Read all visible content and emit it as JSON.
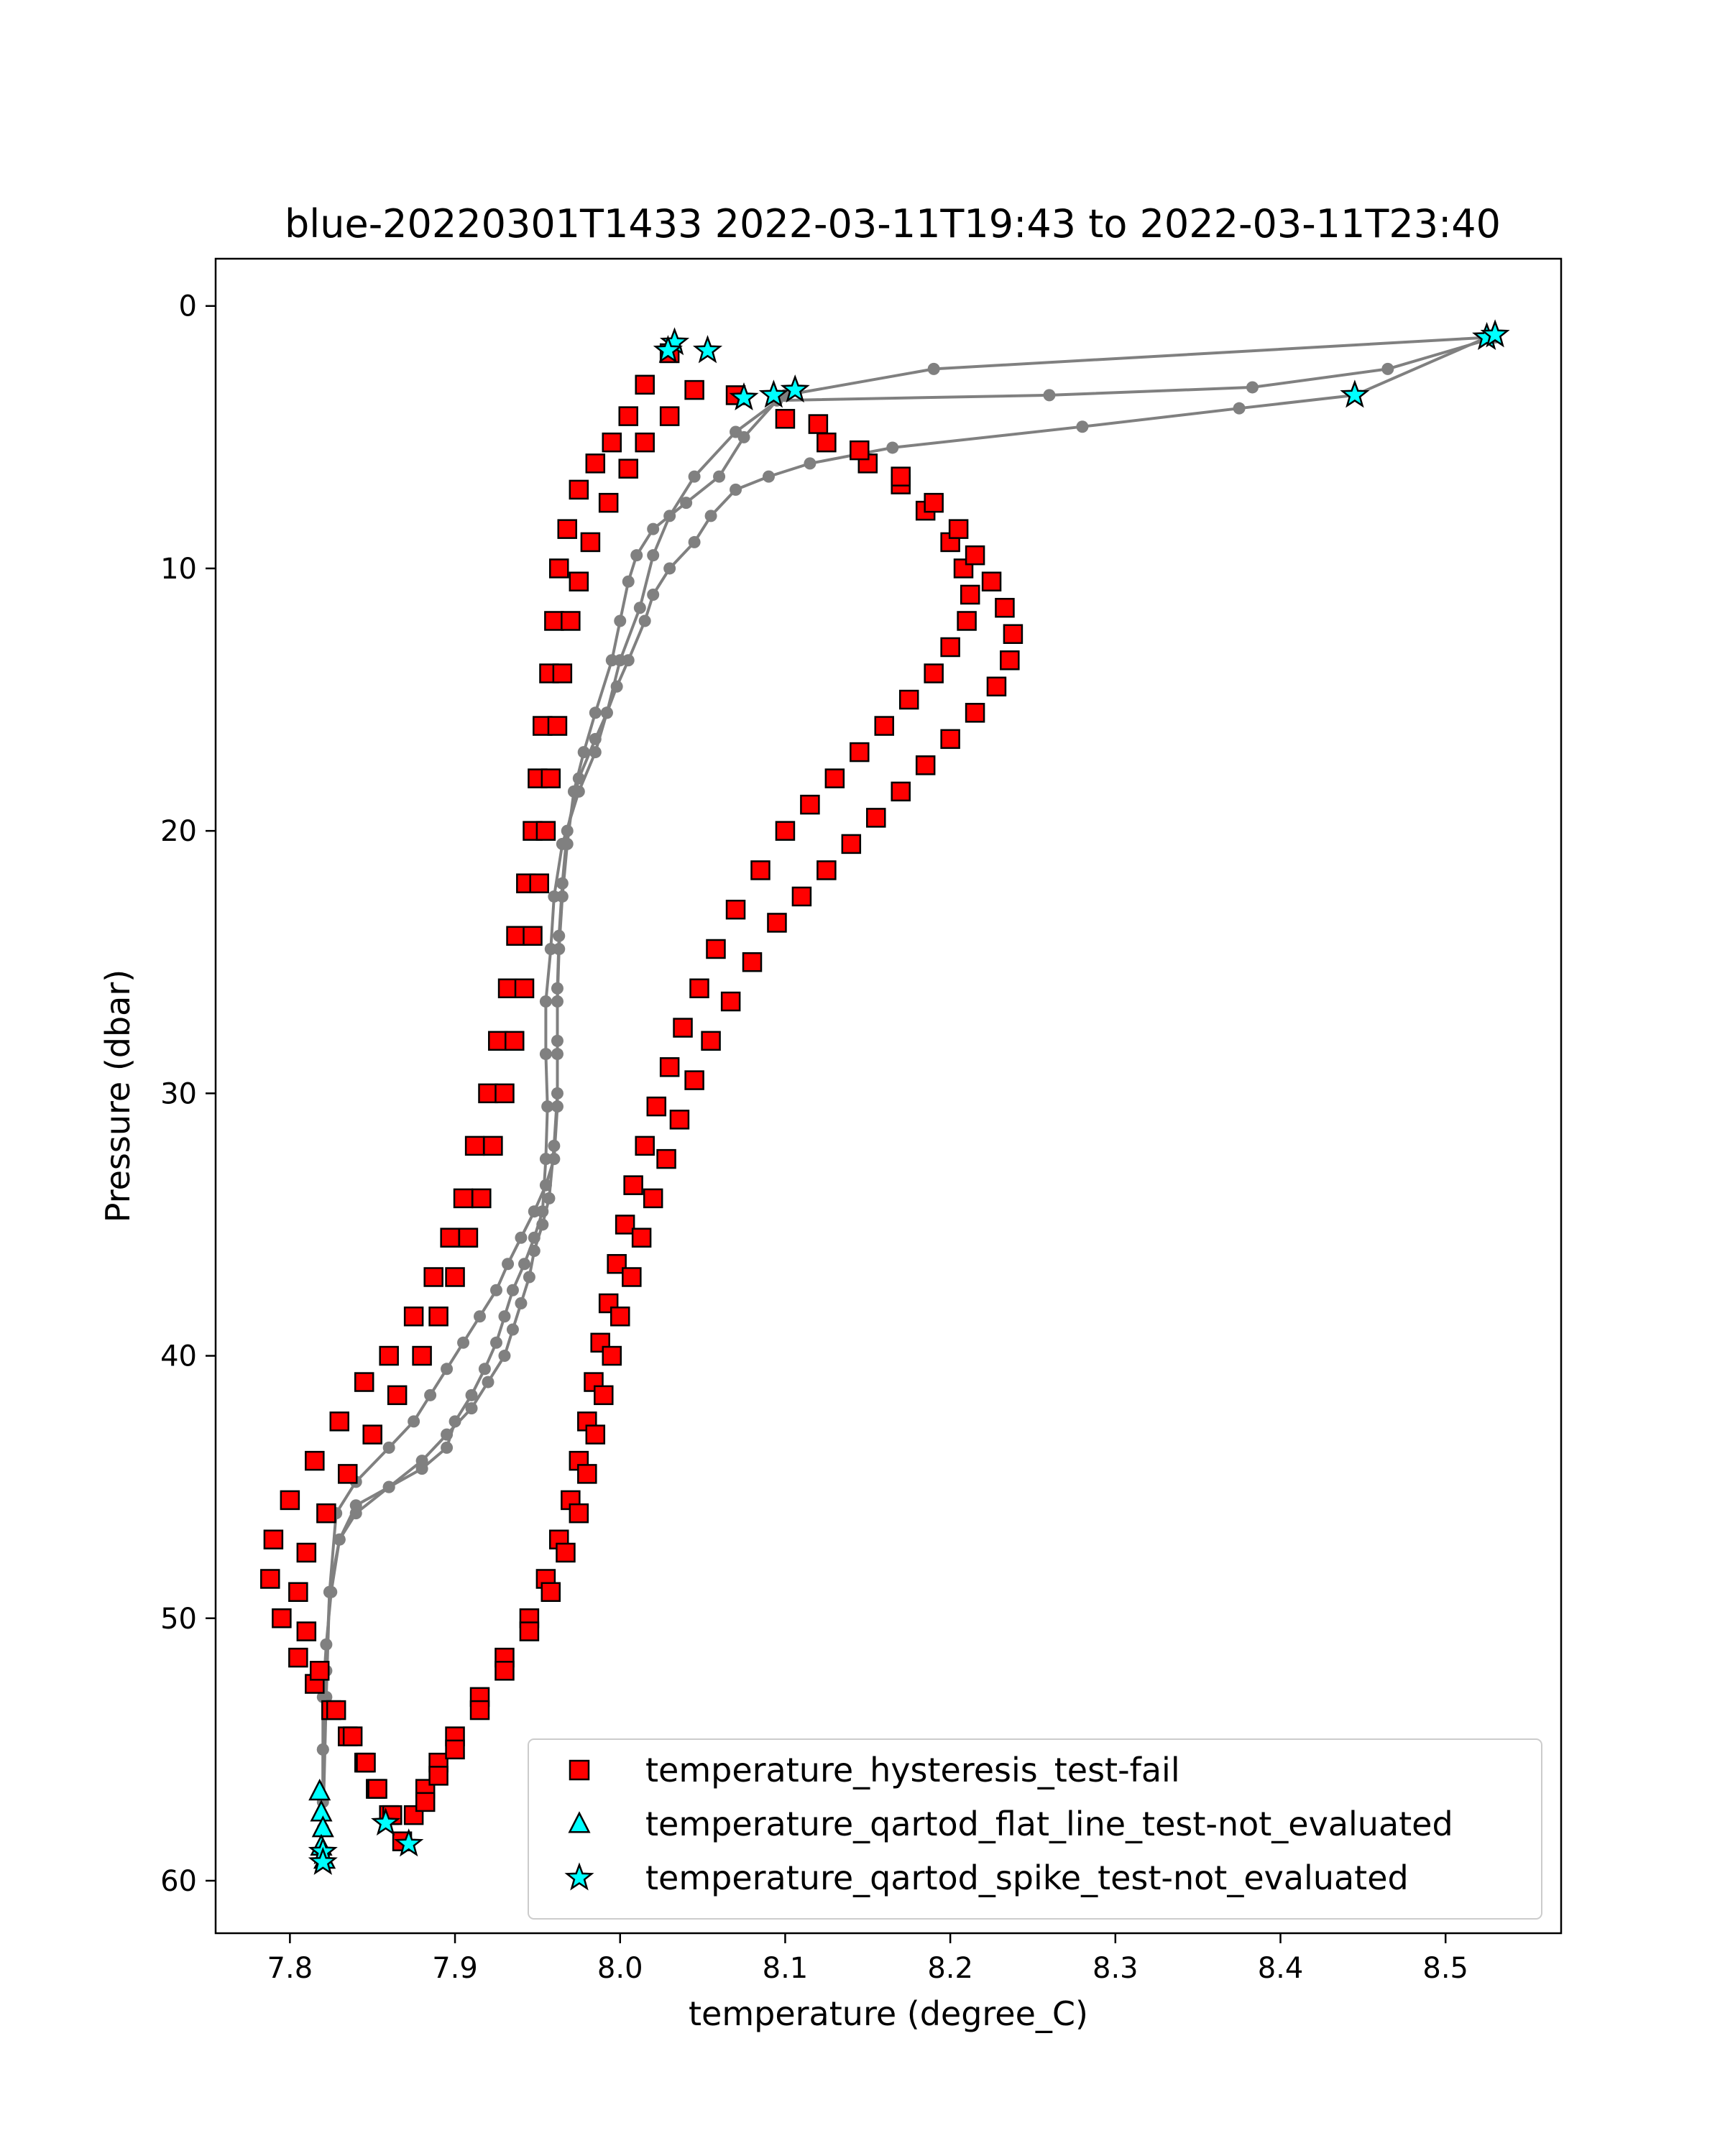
{
  "chart_data": {
    "type": "scatter",
    "title": "blue-20220301T1433 2022-03-11T19:43 to 2022-03-11T23:40",
    "xlabel": "temperature (degree_C)",
    "ylabel": "Pressure (dbar)",
    "xlim": [
      7.755,
      8.57
    ],
    "ylim": [
      62,
      -1.8
    ],
    "y_inverted": true,
    "grid": false,
    "legend_position": "lower right",
    "x_ticks": [
      7.8,
      7.9,
      8.0,
      8.1,
      8.2,
      8.3,
      8.4,
      8.5
    ],
    "x_tick_labels": [
      "7.8",
      "7.9",
      "8.0",
      "8.1",
      "8.2",
      "8.3",
      "8.4",
      "8.5"
    ],
    "y_ticks": [
      0,
      10,
      20,
      30,
      40,
      50,
      60
    ],
    "y_tick_labels": [
      "0",
      "10",
      "20",
      "30",
      "40",
      "50",
      "60"
    ],
    "colors": {
      "profile_line": "#808080",
      "hysteresis_fill": "#ff0000",
      "flagged_fill": "#00ffff",
      "marker_edge": "#000000"
    },
    "profiles": [
      {
        "x": [
          8.525,
          8.19,
          8.1,
          8.07,
          8.045,
          8.03,
          8.02,
          8.012,
          8.0,
          7.992,
          7.985,
          7.975,
          7.965,
          7.96,
          7.958,
          7.955,
          7.955,
          7.956,
          7.955,
          7.953,
          7.948,
          7.942,
          7.935,
          7.93,
          7.925,
          7.918,
          7.91,
          7.9,
          7.895,
          7.88,
          7.86,
          7.84,
          7.83,
          7.825,
          7.822,
          7.82,
          7.82,
          7.82
        ],
        "y": [
          1.2,
          2.4,
          3.4,
          4.8,
          6.5,
          8.0,
          9.5,
          11.5,
          13.5,
          15.5,
          17.0,
          18.5,
          20.5,
          22.5,
          24.5,
          26.5,
          28.5,
          30.5,
          32.5,
          34.5,
          35.5,
          36.5,
          37.5,
          38.5,
          39.5,
          40.5,
          41.5,
          42.5,
          43.5,
          44.3,
          45.0,
          45.7,
          47.0,
          49.0,
          51.0,
          53.0,
          55.0,
          57.0
        ]
      },
      {
        "x": [
          8.53,
          8.465,
          8.383,
          8.26,
          8.095,
          8.075,
          8.06,
          8.04,
          8.02,
          8.01,
          8.005,
          8.0,
          7.995,
          7.985,
          7.978,
          7.972,
          7.968,
          7.965,
          7.963,
          7.962,
          7.962,
          7.962,
          7.96,
          7.955,
          7.948,
          7.94,
          7.932,
          7.925,
          7.915,
          7.905,
          7.895,
          7.885,
          7.875,
          7.86,
          7.84,
          7.828,
          7.824,
          7.822,
          7.82
        ],
        "y": [
          1.2,
          2.4,
          3.1,
          3.4,
          3.6,
          5.0,
          6.5,
          7.5,
          8.5,
          9.5,
          10.5,
          12.0,
          13.5,
          15.5,
          17.0,
          18.5,
          20.5,
          22.5,
          24.5,
          26.5,
          28.5,
          30.5,
          32.5,
          33.5,
          34.5,
          35.5,
          36.5,
          37.5,
          38.5,
          39.5,
          40.5,
          41.5,
          42.5,
          43.5,
          44.8,
          46.0,
          49.0,
          53.0,
          58.0
        ]
      },
      {
        "x": [
          8.525,
          8.445,
          8.375,
          8.28,
          8.165,
          8.115,
          8.09,
          8.07,
          8.055,
          8.045,
          8.03,
          8.02,
          8.015,
          8.005,
          7.998,
          7.992,
          7.985,
          7.975,
          7.968,
          7.965,
          7.963,
          7.962,
          7.962,
          7.962,
          7.96,
          7.957,
          7.953,
          7.948,
          7.945,
          7.94,
          7.935,
          7.93,
          7.92,
          7.91,
          7.895,
          7.88,
          7.86,
          7.84,
          7.83,
          7.824,
          7.822,
          7.82,
          7.82
        ],
        "y": [
          1.2,
          3.4,
          3.9,
          4.6,
          5.4,
          6.0,
          6.5,
          7.0,
          8.0,
          9.0,
          10.0,
          11.0,
          12.0,
          13.5,
          14.5,
          15.5,
          16.5,
          18.0,
          20.0,
          22.0,
          24.0,
          26.0,
          28.0,
          30.0,
          32.0,
          34.0,
          35.0,
          36.0,
          37.0,
          38.0,
          39.0,
          40.0,
          41.0,
          42.0,
          43.0,
          44.0,
          45.0,
          46.0,
          47.0,
          49.0,
          52.0,
          55.0,
          58.0
        ]
      }
    ],
    "hysteresis_branches": [
      {
        "x": [
          8.03,
          8.015,
          8.005,
          7.995,
          7.985,
          7.975,
          7.968,
          7.963,
          7.96,
          7.957,
          7.953,
          7.95,
          7.947,
          7.943,
          7.937,
          7.932,
          7.926,
          7.92,
          7.912,
          7.905,
          7.897,
          7.887,
          7.875,
          7.86,
          7.845,
          7.83,
          7.815,
          7.8,
          7.79,
          7.788,
          7.795,
          7.805,
          7.815,
          7.825,
          7.835,
          7.845,
          7.852,
          7.86,
          7.868
        ],
        "y": [
          1.8,
          3.0,
          4.2,
          5.2,
          6.0,
          7.0,
          8.5,
          10.0,
          12.0,
          14.0,
          16.0,
          18.0,
          20.0,
          22.0,
          24.0,
          26.0,
          28.0,
          30.0,
          32.0,
          34.0,
          35.5,
          37.0,
          38.5,
          40.0,
          41.0,
          42.5,
          44.0,
          45.5,
          47.0,
          48.5,
          50.0,
          51.5,
          52.5,
          53.5,
          54.5,
          55.5,
          56.5,
          57.5,
          58.5
        ]
      },
      {
        "x": [
          8.045,
          8.03,
          8.015,
          8.005,
          7.993,
          7.982,
          7.975,
          7.97,
          7.965,
          7.962,
          7.958,
          7.955,
          7.951,
          7.947,
          7.942,
          7.936,
          7.93,
          7.923,
          7.916,
          7.908,
          7.9,
          7.89,
          7.88,
          7.865,
          7.85,
          7.835,
          7.822,
          7.81,
          7.805,
          7.81,
          7.818,
          7.828,
          7.838,
          7.846,
          7.853,
          7.862
        ],
        "y": [
          3.2,
          4.2,
          5.2,
          6.2,
          7.5,
          9.0,
          10.5,
          12.0,
          14.0,
          16.0,
          18.0,
          20.0,
          22.0,
          24.0,
          26.0,
          28.0,
          30.0,
          32.0,
          34.0,
          35.5,
          37.0,
          38.5,
          40.0,
          41.5,
          43.0,
          44.5,
          46.0,
          47.5,
          49.0,
          50.5,
          52.0,
          53.5,
          54.5,
          55.5,
          56.5,
          57.5
        ]
      },
      {
        "x": [
          8.07,
          8.1,
          8.125,
          8.15,
          8.17,
          8.185,
          8.2,
          8.208,
          8.212,
          8.21,
          8.2,
          8.19,
          8.175,
          8.16,
          8.145,
          8.13,
          8.115,
          8.1,
          8.085,
          8.07,
          8.058,
          8.048,
          8.038,
          8.03,
          8.022,
          8.015,
          8.008,
          8.003,
          7.998,
          7.993,
          7.988,
          7.984,
          7.98,
          7.975,
          7.97,
          7.963,
          7.955,
          7.945,
          7.93,
          7.915,
          7.9,
          7.89,
          7.882,
          7.875
        ],
        "y": [
          3.4,
          4.3,
          5.2,
          6.0,
          6.8,
          7.8,
          9.0,
          10.0,
          11.0,
          12.0,
          13.0,
          14.0,
          15.0,
          16.0,
          17.0,
          18.0,
          19.0,
          20.0,
          21.5,
          23.0,
          24.5,
          26.0,
          27.5,
          29.0,
          30.5,
          32.0,
          33.5,
          35.0,
          36.5,
          38.0,
          39.5,
          41.0,
          42.5,
          44.0,
          45.5,
          47.0,
          48.5,
          50.0,
          51.5,
          53.0,
          54.5,
          55.5,
          56.5,
          57.5
        ]
      },
      {
        "x": [
          8.12,
          8.145,
          8.17,
          8.19,
          8.205,
          8.215,
          8.225,
          8.233,
          8.238,
          8.236,
          8.228,
          8.215,
          8.2,
          8.185,
          8.17,
          8.155,
          8.14,
          8.125,
          8.11,
          8.095,
          8.08,
          8.067,
          8.055,
          8.045,
          8.036,
          8.028,
          8.02,
          8.013,
          8.007,
          8.0,
          7.995,
          7.99,
          7.985,
          7.98,
          7.975,
          7.967,
          7.958,
          7.945,
          7.93,
          7.915,
          7.9,
          7.89,
          7.882
        ],
        "y": [
          4.5,
          5.5,
          6.5,
          7.5,
          8.5,
          9.5,
          10.5,
          11.5,
          12.5,
          13.5,
          14.5,
          15.5,
          16.5,
          17.5,
          18.5,
          19.5,
          20.5,
          21.5,
          22.5,
          23.5,
          25.0,
          26.5,
          28.0,
          29.5,
          31.0,
          32.5,
          34.0,
          35.5,
          37.0,
          38.5,
          40.0,
          41.5,
          43.0,
          44.5,
          46.0,
          47.5,
          49.0,
          50.5,
          52.0,
          53.5,
          55.0,
          56.0,
          57.0
        ]
      }
    ],
    "flat_line_points": [
      {
        "x": 7.818,
        "y": 56.6
      },
      {
        "x": 7.819,
        "y": 57.4
      },
      {
        "x": 7.82,
        "y": 58.0
      },
      {
        "x": 7.819,
        "y": 58.7
      },
      {
        "x": 7.821,
        "y": 59.2
      }
    ],
    "spike_points": [
      {
        "x": 8.033,
        "y": 1.4
      },
      {
        "x": 8.029,
        "y": 1.7
      },
      {
        "x": 8.053,
        "y": 1.7
      },
      {
        "x": 8.075,
        "y": 3.5
      },
      {
        "x": 8.093,
        "y": 3.4
      },
      {
        "x": 8.106,
        "y": 3.2
      },
      {
        "x": 8.525,
        "y": 1.2
      },
      {
        "x": 8.53,
        "y": 1.1
      },
      {
        "x": 8.445,
        "y": 3.4
      },
      {
        "x": 7.858,
        "y": 57.8
      },
      {
        "x": 7.872,
        "y": 58.6
      },
      {
        "x": 7.82,
        "y": 58.9
      },
      {
        "x": 7.82,
        "y": 59.3
      }
    ],
    "legend": [
      {
        "label": "temperature_hysteresis_test-fail",
        "marker": "square",
        "color": "#ff0000"
      },
      {
        "label": "temperature_qartod_flat_line_test-not_evaluated",
        "marker": "triangle",
        "color": "#00ffff"
      },
      {
        "label": "temperature_qartod_spike_test-not_evaluated",
        "marker": "star",
        "color": "#00ffff"
      }
    ]
  }
}
